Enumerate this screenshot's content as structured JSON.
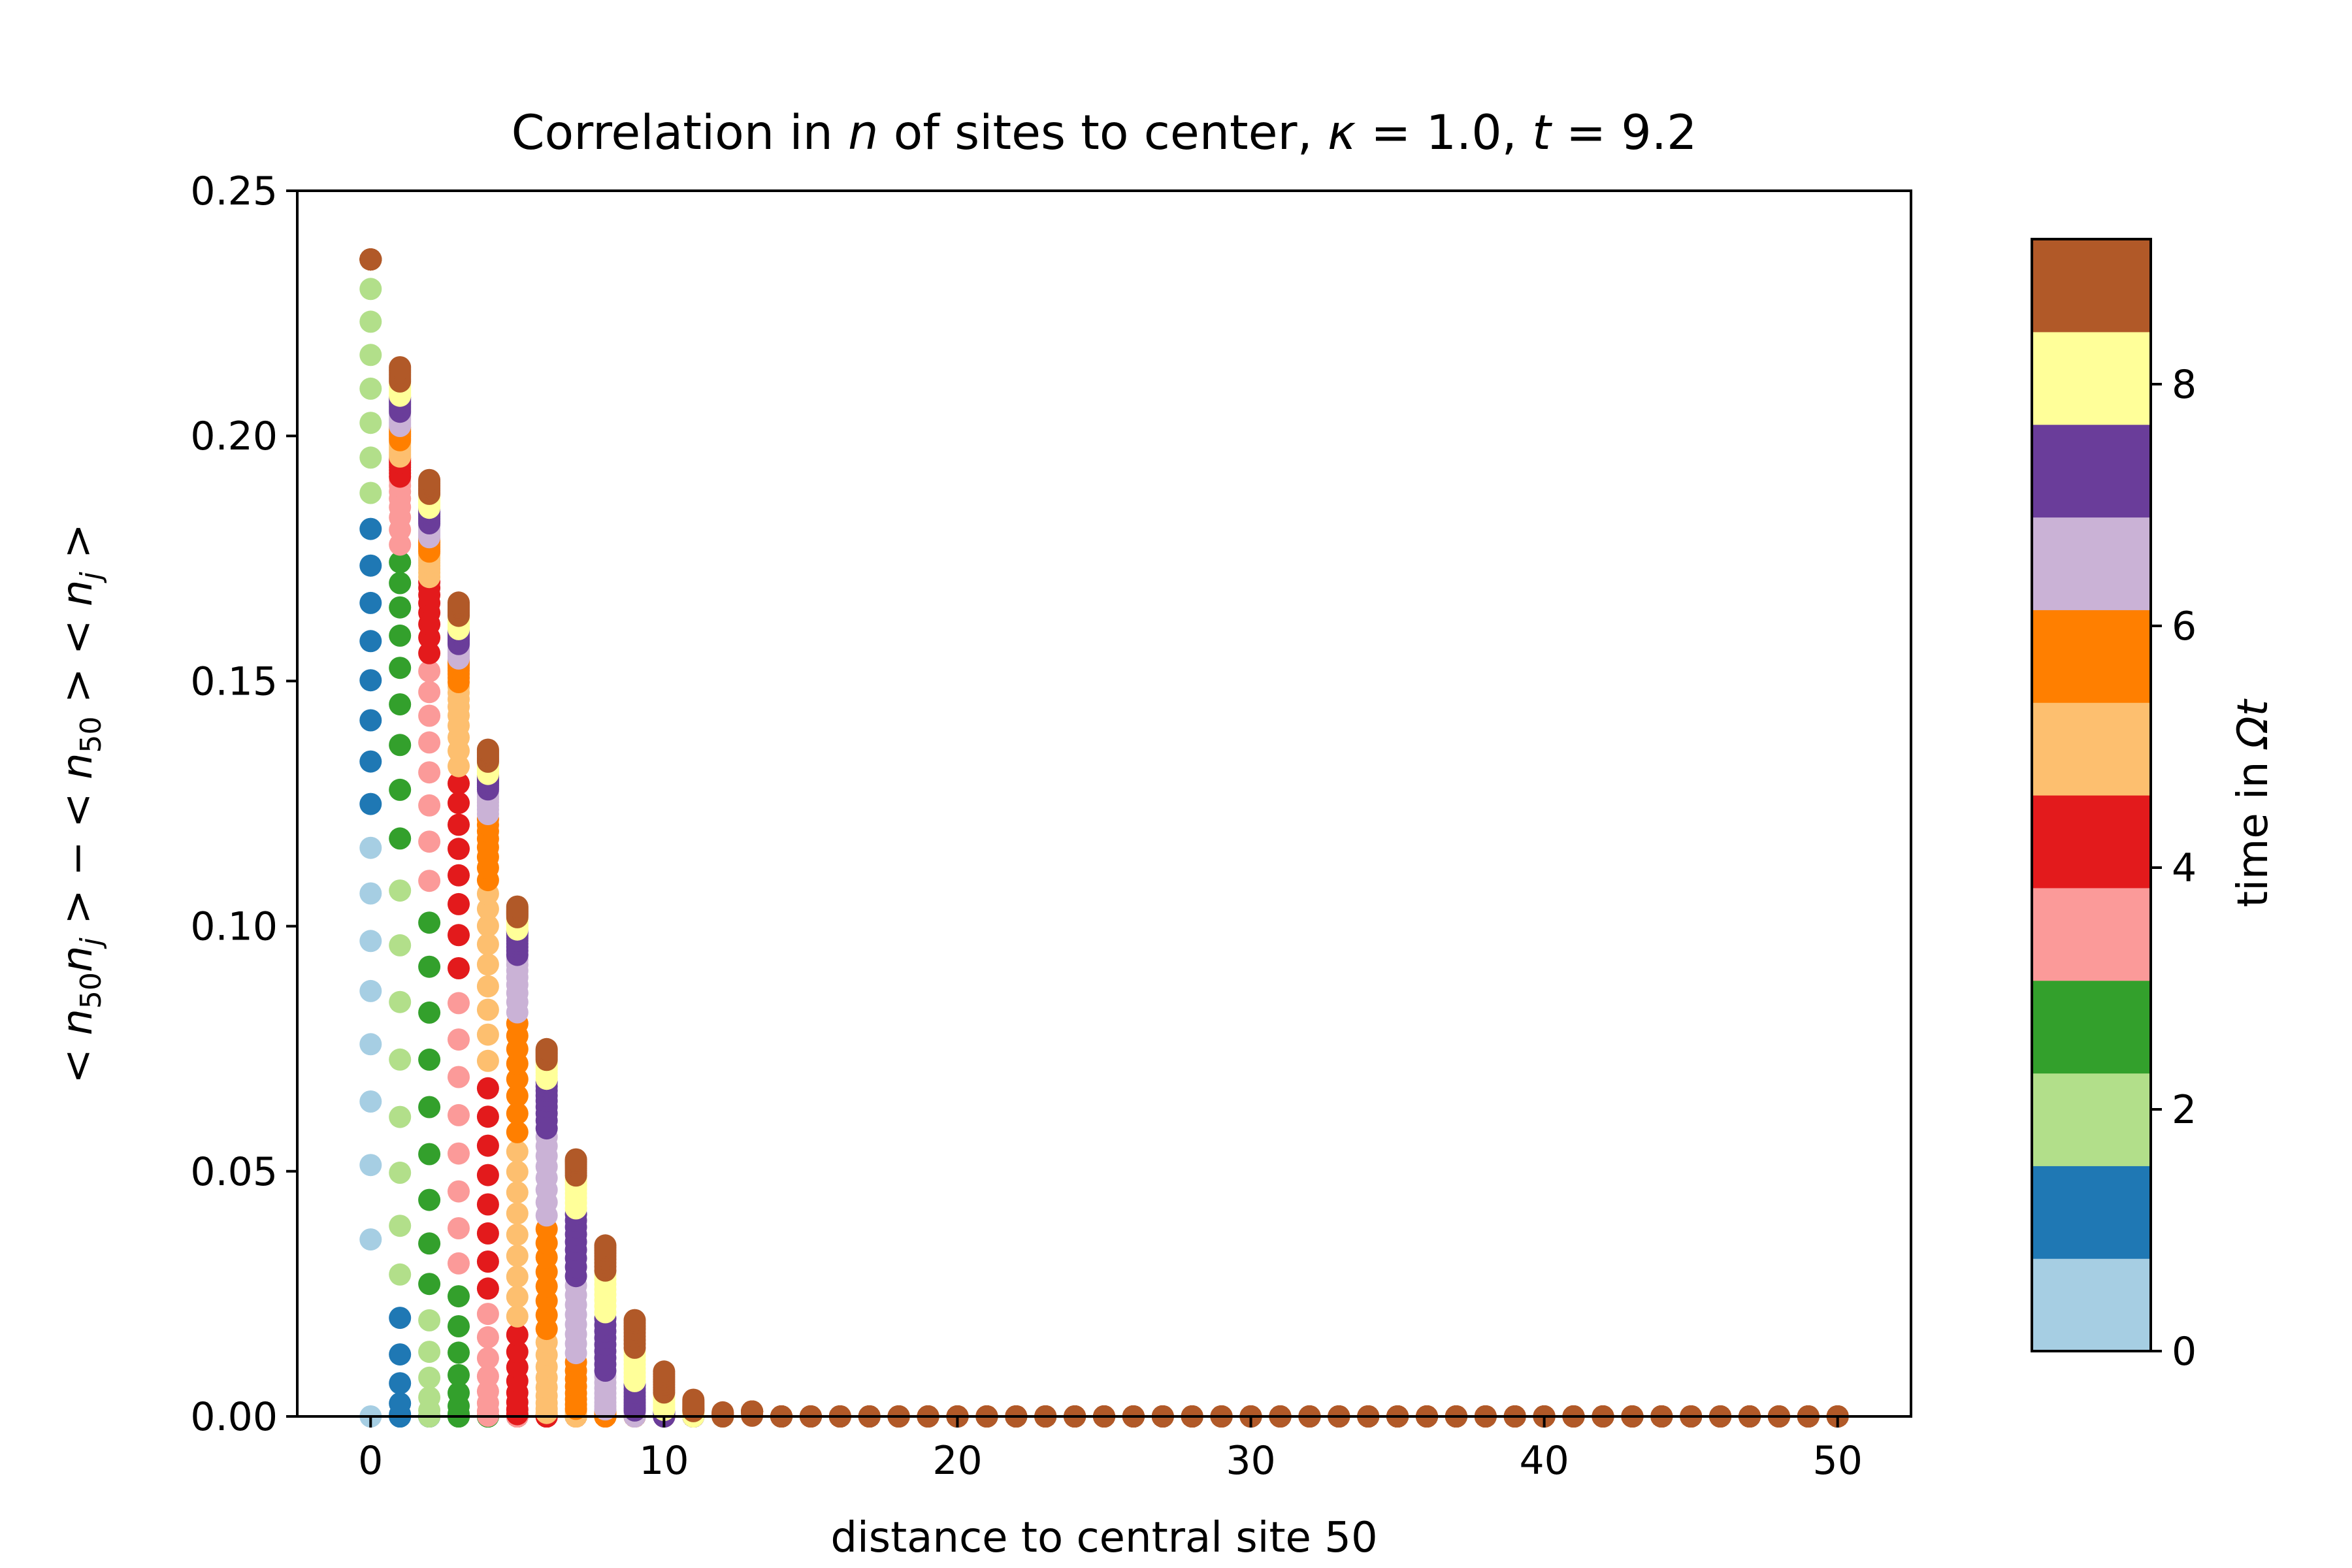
{
  "chart_data": {
    "type": "scatter",
    "title": "Correlation in n of sites to center, κ = 1.0, t = 9.2",
    "title_parts": {
      "prefix": "Correlation in ",
      "var": "n",
      "middle": " of sites to center, ",
      "kappa_sym": "κ",
      "eq1": " = 1.0, ",
      "t_sym": "t",
      "eq2": " = 9.2"
    },
    "xlabel": "distance to central site 50",
    "ylabel": "< n50nj > − < n50 > < nj >",
    "ylabel_parts": {
      "lt": "< ",
      "n": "n",
      "sub50": "50",
      "j": "j",
      "gt": " >",
      "minus": " − ",
      "gap": " "
    },
    "xlim": [
      -2.5,
      52.5
    ],
    "ylim": [
      0,
      0.25
    ],
    "xticks": [
      0,
      10,
      20,
      30,
      40,
      50
    ],
    "xtick_labels": [
      "0",
      "10",
      "20",
      "30",
      "40",
      "50"
    ],
    "yticks": [
      0,
      0.05,
      0.1,
      0.15,
      0.2,
      0.25
    ],
    "ytick_labels": [
      "0.00",
      "0.05",
      "0.10",
      "0.15",
      "0.20",
      "0.25"
    ],
    "grid": false,
    "legend": "none",
    "colorbar": {
      "label_prefix": "time in ",
      "label_var": "Ωt",
      "range": [
        0,
        9.2
      ],
      "ticks": [
        0,
        2,
        4,
        6,
        8
      ],
      "tick_labels": [
        "0",
        "2",
        "4",
        "6",
        "8"
      ],
      "colormap": "Paired",
      "colors": [
        "#a6cee3",
        "#1f78b4",
        "#b2df8a",
        "#33a02c",
        "#fb9a99",
        "#e31a1c",
        "#fdbf6f",
        "#ff7f00",
        "#cab2d6",
        "#6a3d9a",
        "#ffff99",
        "#b15928"
      ]
    },
    "model": {
      "description_values": "final-time correlation envelope per distance",
      "peak_by_distance": [
        0.236,
        0.214,
        0.191,
        0.166,
        0.136,
        0.104,
        0.075,
        0.053,
        0.037,
        0.024,
        0.015,
        0.009,
        0.004,
        0.001
      ],
      "time_steps": 100,
      "t_max": 9.2
    },
    "final_time_series": {
      "name": "t = 9.2",
      "x": [
        0,
        1,
        2,
        3,
        4,
        5,
        6,
        7,
        8,
        9,
        10,
        11,
        12,
        13,
        14,
        15,
        16,
        17,
        18,
        19,
        20,
        21,
        22,
        23,
        24,
        25,
        26,
        27,
        28,
        29,
        30,
        31,
        32,
        33,
        34,
        35,
        36,
        37,
        38,
        39,
        40,
        41,
        42,
        43,
        44,
        45,
        46,
        47,
        48,
        49,
        50
      ],
      "y": [
        0.236,
        0.214,
        0.191,
        0.166,
        0.136,
        0.104,
        0.075,
        0.053,
        0.037,
        0.024,
        0.015,
        0.009,
        0.004,
        0.001,
        0,
        0,
        0,
        0,
        0,
        0,
        0,
        0,
        0,
        0,
        0,
        0,
        0,
        0,
        0,
        0,
        0,
        0,
        0,
        0,
        0,
        0,
        0,
        0,
        0,
        0,
        0,
        0,
        0,
        0,
        0,
        0,
        0,
        0,
        0,
        0,
        0
      ]
    }
  }
}
